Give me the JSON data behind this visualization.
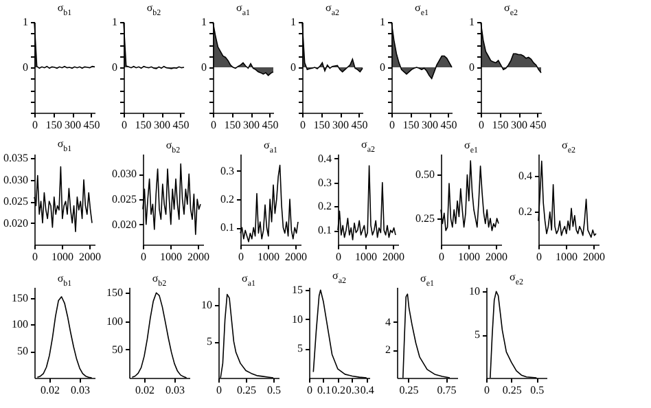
{
  "chart_data": [
    {
      "type": "area",
      "title": "σ$_{b1}$",
      "color": "#000000",
      "x": [
        0,
        20,
        40,
        60,
        80,
        100,
        120,
        140,
        160,
        180,
        200,
        220,
        240,
        260,
        280,
        300,
        320,
        340,
        360,
        380,
        400,
        420,
        440,
        460,
        480
      ],
      "values": [
        1,
        0.02,
        -0.02,
        0.01,
        -0.01,
        0.02,
        -0.02,
        0.01,
        0,
        -0.02,
        0.01,
        -0.01,
        0.02,
        -0.01,
        0,
        -0.02,
        0.01,
        -0.01,
        0.01,
        -0.02,
        0.01,
        0,
        -0.01,
        0.02,
        0.01
      ],
      "xlim": [
        0,
        480
      ],
      "xticks": [
        0,
        150,
        300,
        450
      ],
      "ylim": [
        -1,
        1
      ],
      "yticks": [
        {
          "value": -1,
          "label": null
        },
        {
          "value": -0.75,
          "label": null
        },
        {
          "value": -0.5,
          "label": null
        },
        {
          "value": -0.25,
          "label": null
        },
        0,
        {
          "value": 0.25,
          "label": null
        },
        {
          "value": 0.5,
          "label": null
        },
        {
          "value": 0.75,
          "label": null
        },
        1
      ]
    },
    {
      "type": "area",
      "title": "σ$_{b2}$",
      "color": "#000000",
      "x": [
        0,
        20,
        40,
        60,
        80,
        100,
        120,
        140,
        160,
        180,
        200,
        220,
        240,
        260,
        280,
        300,
        320,
        340,
        360,
        380,
        400,
        420,
        440,
        460,
        480
      ],
      "values": [
        1,
        0.03,
        0.01,
        -0.01,
        0.02,
        -0.01,
        0.01,
        -0.02,
        0.02,
        0,
        -0.01,
        0.01,
        -0.02,
        -0.03,
        0.01,
        -0.02,
        0.02,
        -0.01,
        -0.02,
        -0.03,
        -0.01,
        -0.02,
        0.01,
        -0.01,
        0
      ],
      "xlim": [
        0,
        480
      ],
      "xticks": [
        0,
        150,
        300,
        450
      ],
      "ylim": [
        -1,
        1
      ],
      "yticks": [
        {
          "value": -1,
          "label": null
        },
        {
          "value": -0.75,
          "label": null
        },
        {
          "value": -0.5,
          "label": null
        },
        {
          "value": -0.25,
          "label": null
        },
        0,
        {
          "value": 0.25,
          "label": null
        },
        {
          "value": 0.5,
          "label": null
        },
        {
          "value": 0.75,
          "label": null
        },
        1
      ]
    },
    {
      "type": "area",
      "title": "σ$_{a1}$",
      "color": "#000000",
      "x": [
        0,
        20,
        40,
        60,
        80,
        100,
        120,
        140,
        160,
        180,
        200,
        220,
        240,
        260,
        280,
        300,
        320,
        340,
        360,
        380,
        400,
        420,
        440,
        460,
        480
      ],
      "values": [
        1,
        0.7,
        0.45,
        0.35,
        0.25,
        0.22,
        0.15,
        0.05,
        0,
        -0.02,
        0.02,
        0.05,
        0.1,
        0.03,
        -0.02,
        0.08,
        -0.02,
        -0.05,
        -0.1,
        -0.12,
        -0.15,
        -0.12,
        -0.18,
        -0.13,
        -0.1
      ],
      "xlim": [
        0,
        480
      ],
      "xticks": [
        0,
        150,
        300,
        450
      ],
      "ylim": [
        -1,
        1
      ],
      "yticks": [
        {
          "value": -1,
          "label": null
        },
        {
          "value": -0.75,
          "label": null
        },
        {
          "value": -0.5,
          "label": null
        },
        {
          "value": -0.25,
          "label": null
        },
        0,
        {
          "value": 0.25,
          "label": null
        },
        {
          "value": 0.5,
          "label": null
        },
        {
          "value": 0.75,
          "label": null
        },
        1
      ]
    },
    {
      "type": "area",
      "title": "σ$_{a2}$",
      "color": "#000000",
      "x": [
        0,
        20,
        40,
        60,
        80,
        100,
        120,
        140,
        160,
        180,
        200,
        220,
        240,
        260,
        280,
        300,
        320,
        340,
        360,
        380,
        400,
        420,
        440,
        460,
        480
      ],
      "values": [
        1,
        0.1,
        -0.05,
        -0.03,
        -0.02,
        0,
        -0.03,
        0.02,
        0.1,
        -0.08,
        0.05,
        -0.02,
        0.02,
        0.03,
        0.04,
        -0.05,
        -0.1,
        -0.05,
        0,
        0.05,
        0.18,
        -0.02,
        -0.05,
        -0.1,
        -0.02
      ],
      "xlim": [
        0,
        480
      ],
      "xticks": [
        0,
        150,
        300,
        450
      ],
      "ylim": [
        -1,
        1
      ],
      "yticks": [
        {
          "value": -1,
          "label": null
        },
        {
          "value": -0.75,
          "label": null
        },
        {
          "value": -0.5,
          "label": null
        },
        {
          "value": -0.25,
          "label": null
        },
        0,
        {
          "value": 0.25,
          "label": null
        },
        {
          "value": 0.5,
          "label": null
        },
        {
          "value": 0.75,
          "label": null
        },
        1
      ]
    },
    {
      "type": "area",
      "title": "σ$_{e1}$",
      "color": "#000000",
      "x": [
        0,
        20,
        40,
        60,
        80,
        100,
        120,
        140,
        160,
        180,
        200,
        220,
        240,
        260,
        280,
        300,
        320,
        340,
        360,
        380,
        400,
        420,
        440,
        460,
        480
      ],
      "values": [
        1,
        0.6,
        0.3,
        0.1,
        -0.05,
        -0.1,
        -0.15,
        -0.1,
        -0.05,
        -0.02,
        0,
        -0.02,
        -0.05,
        -0.02,
        -0.08,
        -0.18,
        -0.25,
        -0.1,
        0.05,
        0.15,
        0.25,
        0.25,
        0.2,
        0.1,
        0
      ],
      "xlim": [
        0,
        480
      ],
      "xticks": [
        0,
        150,
        300,
        450
      ],
      "ylim": [
        -1,
        1
      ],
      "yticks": [
        {
          "value": -1,
          "label": null
        },
        {
          "value": -0.75,
          "label": null
        },
        {
          "value": -0.5,
          "label": null
        },
        {
          "value": -0.25,
          "label": null
        },
        0,
        {
          "value": 0.25,
          "label": null
        },
        {
          "value": 0.5,
          "label": null
        },
        {
          "value": 0.75,
          "label": null
        },
        1
      ]
    },
    {
      "type": "area",
      "title": "σ$_{e2}$",
      "color": "#000000",
      "x": [
        0,
        20,
        40,
        60,
        80,
        100,
        120,
        140,
        160,
        180,
        200,
        220,
        240,
        260,
        280,
        300,
        320,
        340,
        360,
        380,
        400,
        420,
        440,
        460,
        480
      ],
      "values": [
        1,
        0.6,
        0.35,
        0.25,
        0.15,
        0.12,
        0.1,
        0.15,
        0.05,
        -0.05,
        -0.02,
        0.05,
        0.15,
        0.3,
        0.3,
        0.28,
        0.28,
        0.25,
        0.2,
        0.22,
        0.18,
        0.1,
        0.05,
        -0.05,
        -0.12
      ],
      "xlim": [
        0,
        480
      ],
      "xticks": [
        0,
        150,
        300,
        450
      ],
      "ylim": [
        -1,
        1
      ],
      "yticks": [
        {
          "value": -1,
          "label": null
        },
        {
          "value": -0.75,
          "label": null
        },
        {
          "value": -0.5,
          "label": null
        },
        {
          "value": -0.25,
          "label": null
        },
        0,
        {
          "value": 0.25,
          "label": null
        },
        {
          "value": 0.5,
          "label": null
        },
        {
          "value": 0.75,
          "label": null
        },
        1
      ]
    },
    {
      "type": "line",
      "title": "σ$_{b1}$",
      "color": "#000000",
      "x": [
        0,
        60,
        120,
        180,
        240,
        300,
        360,
        420,
        480,
        540,
        600,
        660,
        720,
        780,
        840,
        900,
        960,
        1020,
        1080,
        1140,
        1200,
        1260,
        1320,
        1380,
        1440,
        1500,
        1560,
        1620,
        1680,
        1740,
        1800,
        1860,
        1920,
        1980,
        2040,
        2100
      ],
      "values": [
        0.026,
        0.024,
        0.031,
        0.022,
        0.025,
        0.02,
        0.027,
        0.023,
        0.021,
        0.025,
        0.024,
        0.019,
        0.026,
        0.022,
        0.024,
        0.023,
        0.033,
        0.021,
        0.024,
        0.025,
        0.022,
        0.028,
        0.023,
        0.02,
        0.024,
        0.018,
        0.026,
        0.023,
        0.025,
        0.021,
        0.03,
        0.024,
        0.022,
        0.027,
        0.023,
        0.02
      ],
      "xlim": [
        0,
        2200
      ],
      "xticks": [
        0,
        1000,
        2000
      ],
      "ylim": [
        0.015,
        0.036
      ],
      "yticks": [
        {
          "value": 0.02,
          "label": "0.020"
        },
        0.025,
        {
          "value": 0.03,
          "label": "0.030"
        },
        0.035
      ]
    },
    {
      "type": "line",
      "title": "σ$_{b2}$",
      "color": "#000000",
      "x": [
        0,
        60,
        120,
        180,
        240,
        300,
        360,
        420,
        480,
        540,
        600,
        660,
        720,
        780,
        840,
        900,
        960,
        1020,
        1080,
        1140,
        1200,
        1260,
        1320,
        1380,
        1440,
        1500,
        1560,
        1620,
        1680,
        1740,
        1800,
        1860,
        1920,
        1980,
        2040,
        2100
      ],
      "values": [
        0.023,
        0.027,
        0.02,
        0.025,
        0.029,
        0.022,
        0.024,
        0.019,
        0.026,
        0.031,
        0.023,
        0.021,
        0.028,
        0.024,
        0.022,
        0.031,
        0.025,
        0.02,
        0.027,
        0.023,
        0.029,
        0.024,
        0.021,
        0.032,
        0.025,
        0.022,
        0.027,
        0.024,
        0.03,
        0.023,
        0.021,
        0.026,
        0.018,
        0.025,
        0.023,
        0.024
      ],
      "xlim": [
        0,
        2200
      ],
      "xticks": [
        0,
        1000,
        2000
      ],
      "ylim": [
        0.016,
        0.034
      ],
      "yticks": [
        {
          "value": 0.02,
          "label": "0.020"
        },
        0.025,
        {
          "value": 0.03,
          "label": "0.030"
        }
      ]
    },
    {
      "type": "line",
      "title": "σ$_{a1}$",
      "color": "#000000",
      "x": [
        0,
        60,
        120,
        180,
        240,
        300,
        360,
        420,
        480,
        540,
        600,
        660,
        720,
        780,
        840,
        900,
        960,
        1020,
        1080,
        1140,
        1200,
        1260,
        1320,
        1380,
        1440,
        1500,
        1560,
        1620,
        1680,
        1740,
        1800,
        1860,
        1920,
        1980,
        2040,
        2100
      ],
      "values": [
        0.08,
        0.1,
        0.06,
        0.09,
        0.07,
        0.05,
        0.08,
        0.06,
        0.1,
        0.07,
        0.22,
        0.08,
        0.12,
        0.06,
        0.09,
        0.18,
        0.1,
        0.07,
        0.2,
        0.12,
        0.25,
        0.15,
        0.2,
        0.28,
        0.32,
        0.18,
        0.1,
        0.08,
        0.12,
        0.07,
        0.2,
        0.09,
        0.06,
        0.1,
        0.08,
        0.12
      ],
      "xlim": [
        0,
        2200
      ],
      "xticks": [
        0,
        1000,
        2000
      ],
      "ylim": [
        0.04,
        0.36
      ],
      "yticks": [
        0.1,
        0.2,
        0.3
      ]
    },
    {
      "type": "line",
      "title": "σ$_{a2}$",
      "color": "#000000",
      "x": [
        0,
        60,
        120,
        180,
        240,
        300,
        360,
        420,
        480,
        540,
        600,
        660,
        720,
        780,
        840,
        900,
        960,
        1020,
        1080,
        1140,
        1200,
        1260,
        1320,
        1380,
        1440,
        1500,
        1560,
        1620,
        1680,
        1740,
        1800,
        1860,
        1920,
        1980,
        2040,
        2100
      ],
      "values": [
        0.1,
        0.18,
        0.08,
        0.12,
        0.07,
        0.1,
        0.15,
        0.08,
        0.11,
        0.06,
        0.13,
        0.09,
        0.1,
        0.14,
        0.08,
        0.1,
        0.12,
        0.07,
        0.09,
        0.37,
        0.12,
        0.08,
        0.1,
        0.14,
        0.07,
        0.11,
        0.09,
        0.3,
        0.1,
        0.08,
        0.12,
        0.07,
        0.1,
        0.09,
        0.11,
        0.08
      ],
      "xlim": [
        0,
        2200
      ],
      "xticks": [
        0,
        1000,
        2000
      ],
      "ylim": [
        0.04,
        0.42
      ],
      "yticks": [
        0.1,
        0.2,
        0.3,
        0.4
      ]
    },
    {
      "type": "line",
      "title": "σ$_{e1}$",
      "color": "#000000",
      "x": [
        0,
        60,
        120,
        180,
        240,
        300,
        360,
        420,
        480,
        540,
        600,
        660,
        720,
        780,
        840,
        900,
        960,
        1020,
        1080,
        1140,
        1200,
        1260,
        1320,
        1380,
        1440,
        1500,
        1560,
        1620,
        1680,
        1740,
        1800,
        1860,
        1920,
        1980,
        2040,
        2100
      ],
      "values": [
        0.3,
        0.22,
        0.28,
        0.18,
        0.2,
        0.45,
        0.25,
        0.2,
        0.3,
        0.22,
        0.35,
        0.26,
        0.42,
        0.3,
        0.2,
        0.28,
        0.5,
        0.35,
        0.58,
        0.4,
        0.3,
        0.25,
        0.2,
        0.35,
        0.55,
        0.4,
        0.28,
        0.22,
        0.3,
        0.2,
        0.25,
        0.18,
        0.22,
        0.2,
        0.25,
        0.22
      ],
      "xlim": [
        0,
        2200
      ],
      "xticks": [
        0,
        1000,
        2000
      ],
      "ylim": [
        0.1,
        0.62
      ],
      "yticks": [
        0.25,
        {
          "value": 0.5,
          "label": "0.50"
        }
      ]
    },
    {
      "type": "line",
      "title": "σ$_{e2}$",
      "color": "#000000",
      "x": [
        0,
        60,
        120,
        180,
        240,
        300,
        360,
        420,
        480,
        540,
        600,
        660,
        720,
        780,
        840,
        900,
        960,
        1020,
        1080,
        1140,
        1200,
        1260,
        1320,
        1380,
        1440,
        1500,
        1560,
        1620,
        1680,
        1740,
        1800,
        1860,
        1920,
        1980,
        2040,
        2100
      ],
      "values": [
        0.15,
        0.3,
        0.48,
        0.25,
        0.15,
        0.08,
        0.12,
        0.2,
        0.1,
        0.35,
        0.12,
        0.08,
        0.1,
        0.15,
        0.07,
        0.1,
        0.12,
        0.08,
        0.15,
        0.1,
        0.22,
        0.12,
        0.18,
        0.1,
        0.08,
        0.12,
        0.1,
        0.07,
        0.15,
        0.27,
        0.1,
        0.08,
        0.06,
        0.1,
        0.07,
        0.08
      ],
      "xlim": [
        0,
        2200
      ],
      "xticks": [
        0,
        1000,
        2000
      ],
      "ylim": [
        0.02,
        0.52
      ],
      "yticks": [
        0.2,
        0.4
      ]
    },
    {
      "type": "line",
      "title": "σ$_{b1}$",
      "color": "#000000",
      "x": [
        0.016,
        0.017,
        0.018,
        0.019,
        0.02,
        0.021,
        0.022,
        0.023,
        0.024,
        0.025,
        0.026,
        0.027,
        0.028,
        0.029,
        0.03,
        0.031,
        0.032,
        0.033,
        0.034
      ],
      "values": [
        1,
        3,
        8,
        20,
        42,
        75,
        115,
        145,
        152,
        140,
        115,
        85,
        58,
        35,
        18,
        8,
        3,
        1,
        0
      ],
      "xlim": [
        0.015,
        0.035
      ],
      "xticks": [
        0.02,
        0.03
      ],
      "ylim": [
        0,
        170
      ],
      "yticks": [
        50,
        100,
        150
      ]
    },
    {
      "type": "line",
      "title": "σ$_{b2}$",
      "color": "#000000",
      "x": [
        0.016,
        0.017,
        0.018,
        0.019,
        0.02,
        0.021,
        0.022,
        0.023,
        0.024,
        0.025,
        0.026,
        0.027,
        0.028,
        0.029,
        0.03,
        0.031,
        0.032,
        0.033,
        0.034
      ],
      "values": [
        1,
        3,
        8,
        18,
        38,
        68,
        105,
        135,
        150,
        145,
        125,
        98,
        70,
        45,
        25,
        12,
        5,
        2,
        0
      ],
      "xlim": [
        0.015,
        0.035
      ],
      "xticks": [
        0.02,
        0.03
      ],
      "ylim": [
        0,
        160
      ],
      "yticks": [
        50,
        100,
        150
      ]
    },
    {
      "type": "line",
      "title": "σ$_{a1}$",
      "color": "#000000",
      "x": [
        0.02,
        0.04,
        0.06,
        0.08,
        0.1,
        0.12,
        0.14,
        0.16,
        0.2,
        0.25,
        0.3,
        0.35,
        0.4,
        0.45,
        0.5
      ],
      "values": [
        0,
        2,
        8,
        11.5,
        11,
        8,
        5,
        3.5,
        2,
        1,
        0.6,
        0.3,
        0.2,
        0.1,
        0
      ],
      "xlim": [
        0,
        0.55
      ],
      "xticks": [
        0,
        0.25,
        0.5
      ],
      "ylim": [
        0,
        12.5
      ],
      "yticks": [
        5,
        10
      ]
    },
    {
      "type": "line",
      "title": "σ$_{a2}$",
      "color": "#000000",
      "x": [
        0.03,
        0.05,
        0.07,
        0.08,
        0.1,
        0.12,
        0.14,
        0.16,
        0.2,
        0.25,
        0.3,
        0.35,
        0.4
      ],
      "values": [
        1,
        8,
        14,
        15,
        13,
        10,
        7,
        4,
        1.5,
        0.6,
        0.3,
        0.1,
        0
      ],
      "xlim": [
        0,
        0.42
      ],
      "xticks": [
        0,
        0.1,
        0.2,
        0.3,
        0.4
      ],
      "ylim": [
        0,
        15.5
      ],
      "yticks": [
        5,
        10,
        15
      ]
    },
    {
      "type": "line",
      "title": "σ$_{e1}$",
      "color": "#000000",
      "x": [
        0.18,
        0.2,
        0.22,
        0.24,
        0.26,
        0.3,
        0.35,
        0.4,
        0.5,
        0.6,
        0.7,
        0.8
      ],
      "values": [
        0,
        3,
        5.8,
        6,
        5,
        3.8,
        2.5,
        1.5,
        0.6,
        0.25,
        0.1,
        0
      ],
      "xlim": [
        0.1,
        0.9
      ],
      "xticks": [
        0.25,
        0.75
      ],
      "ylim": [
        0,
        6.5
      ],
      "yticks": [
        2,
        4
      ]
    },
    {
      "type": "line",
      "title": "σ$_{e2}$",
      "color": "#000000",
      "x": [
        0.04,
        0.06,
        0.08,
        0.1,
        0.12,
        0.14,
        0.16,
        0.2,
        0.25,
        0.3,
        0.35,
        0.4,
        0.5
      ],
      "values": [
        0,
        5,
        9,
        10,
        9.5,
        7.5,
        5.5,
        3,
        1.8,
        0.8,
        0.3,
        0.1,
        0
      ],
      "xlim": [
        0,
        0.6
      ],
      "xticks": [
        0,
        0.25,
        0.5
      ],
      "ylim": [
        0,
        10.5
      ],
      "yticks": [
        5,
        10
      ]
    }
  ]
}
